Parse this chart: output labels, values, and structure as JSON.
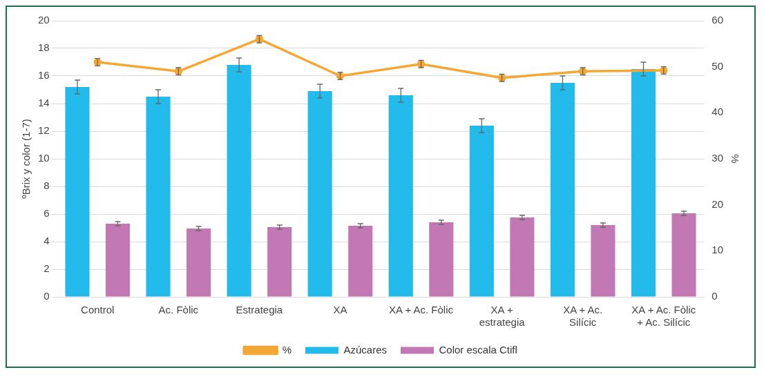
{
  "chart_data": {
    "type": "bar",
    "ylabel": "ºBrix y color (1-7)",
    "y2label": "%",
    "categories": [
      "Control",
      "Ac. Fòlic",
      "Estrategia",
      "XA",
      "XA + Ac. Fòlic",
      "XA + estrategia",
      "XA + Ac. Silícic",
      "XA + Ac. Fòlic + Ac. Silícic"
    ],
    "series": [
      {
        "name": "Azúcares",
        "color": "#22bbec",
        "values": [
          15.2,
          14.5,
          16.8,
          14.9,
          14.6,
          12.4,
          15.5,
          16.5
        ],
        "errors": [
          0.5,
          0.5,
          0.5,
          0.5,
          0.5,
          0.5,
          0.5,
          0.5
        ]
      },
      {
        "name": "Color escala Ctifl",
        "color": "#c278b2",
        "values": [
          5.3,
          4.95,
          5.05,
          5.15,
          5.4,
          5.75,
          5.2,
          6.05
        ],
        "errors": [
          0.15,
          0.15,
          0.15,
          0.15,
          0.15,
          0.15,
          0.15,
          0.15
        ]
      },
      {
        "name": "%",
        "type": "line",
        "axis": "y2",
        "color": "#f5a733",
        "marker": "circle",
        "values": [
          51,
          49,
          56,
          48,
          50.6,
          47.6,
          49,
          49.2
        ],
        "errors": [
          0.8,
          0.8,
          0.8,
          0.8,
          0.8,
          0.8,
          0.8,
          0.8
        ]
      }
    ],
    "ylim": [
      0,
      20
    ],
    "yticks": [
      0,
      2,
      4,
      6,
      8,
      10,
      12,
      14,
      16,
      18,
      20
    ],
    "y2lim": [
      0,
      60
    ],
    "y2ticks": [
      0,
      10,
      20,
      30,
      40,
      50,
      60
    ],
    "grid": "y",
    "legend": "bottom"
  }
}
